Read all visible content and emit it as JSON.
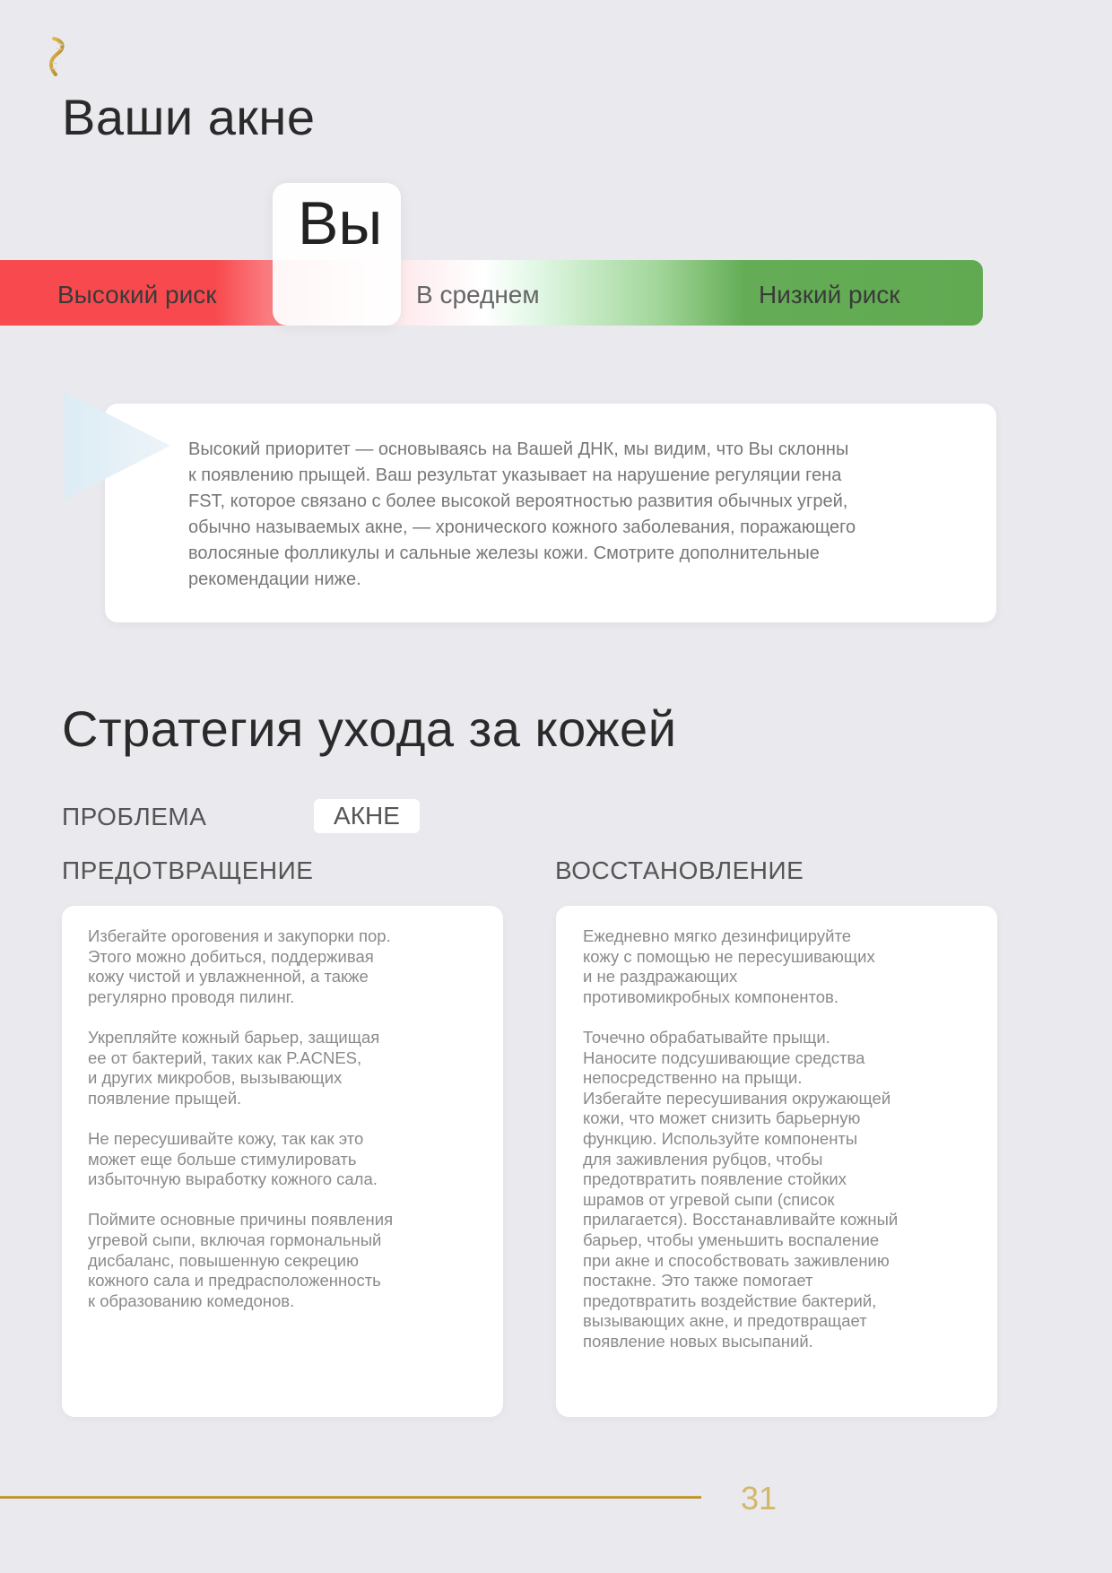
{
  "logo": {
    "icon": "dna-helix-gold-logo",
    "color": "#c9a23a"
  },
  "section1": {
    "title": "Ваши акне"
  },
  "risk_scale": {
    "labels": {
      "high": "Высокий риск",
      "average": "В среднем",
      "low": "Низкий риск"
    },
    "marker_label": "Вы",
    "marker_position": "high-to-average boundary",
    "colors": {
      "high": "#f84a4e",
      "average": "#ffffff",
      "low": "#61aa52"
    }
  },
  "callout": {
    "icon": "triangle-pointer",
    "text": "Высокий приоритет — основываясь на Вашей ДНК, мы видим, что Вы склонны\nк появлению прыщей. Ваш результат указывает на нарушение регуляции гена\nFST, которое связано с более высокой вероятностью развития обычных угрей,\nобычно называемых акне, — хронического кожного заболевания, поражающего\nволосяные фолликулы и сальные железы кожи. Смотрите дополнительные\nрекомендации ниже."
  },
  "section2": {
    "title": "Стратегия ухода за кожей",
    "problem_label": "ПРОБЛЕМА",
    "problem_value": "АКНЕ",
    "prevention": {
      "title": "ПРЕДОТВРАЩЕНИЕ",
      "text": "Избегайте ороговения и закупорки пор.\nЭтого можно добиться, поддерживая\nкожу чистой и увлажненной, а также\nрегулярно проводя пилинг.\n\nУкрепляйте кожный барьер, защищая\nее от бактерий, таких как P.ACNES,\nи других микробов, вызывающих\nпоявление прыщей.\n\nНе пересушивайте кожу, так как это\nможет еще больше стимулировать\nизбыточную выработку кожного сала.\n\nПоймите основные причины появления\nугревой сыпи, включая гормональный\nдисбаланс, повышенную секрецию\nкожного сала и предрасположенность\nк образованию комедонов."
    },
    "recovery": {
      "title": "ВОССТАНОВЛЕНИЕ",
      "text": "Ежедневно мягко дезинфицируйте\nкожу с помощью не пересушивающих\nи не раздражающих\nпротивомикробных компонентов.\n\nТочечно обрабатывайте прыщи.\nНаносите подсушивающие средства\nнепосредственно на прыщи.\nИзбегайте пересушивания окружающей\nкожи, что может снизить барьерную\nфункцию. Используйте компоненты\nдля заживления рубцов, чтобы\nпредотвратить появление стойких\nшрамов от угревой сыпи (список\nприлагается). Восстанавливайте кожный\nбарьер, чтобы уменьшить воспаление\nпри акне и способствовать заживлению\nпостакне. Это также помогает\nпредотвратить воздействие бактерий,\nвызывающих акне, и предотвращает\nпоявление новых высыпаний."
    }
  },
  "footer": {
    "page_number": "31",
    "rule_color": "#c9a23a"
  }
}
